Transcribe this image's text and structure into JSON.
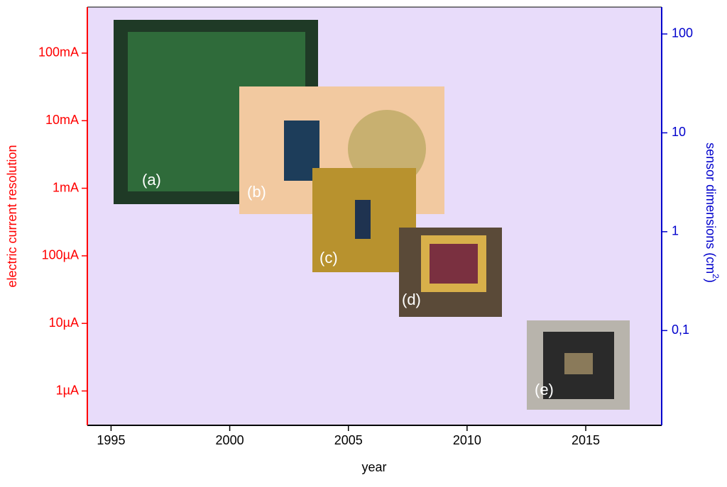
{
  "chart_data": {
    "type": "scatter",
    "x_label": "year",
    "y_label": "electric current resolution",
    "y2_label": {
      "text": "sensor dimensions (cm",
      "sup": "2",
      "end": ")"
    },
    "xlim": [
      1994,
      2018.2
    ],
    "xticks": [
      1995,
      2000,
      2005,
      2010,
      2015
    ],
    "ylim": [
      3.1e-07,
      0.48
    ],
    "ylog": true,
    "yticks": [
      {
        "value": 1e-06,
        "label": "1µA"
      },
      {
        "value": 1e-05,
        "label": "10µA"
      },
      {
        "value": 0.0001,
        "label": "100µA"
      },
      {
        "value": 0.001,
        "label": "1mA"
      },
      {
        "value": 0.01,
        "label": "10mA"
      },
      {
        "value": 0.1,
        "label": "100mA"
      }
    ],
    "y_color": "#ff0000",
    "y2lim": [
      0.011,
      187
    ],
    "y2log": true,
    "y2ticks": [
      {
        "value": 0.1,
        "label": "0,1"
      },
      1,
      10,
      100
    ],
    "y2_color": "#0000cc",
    "annotations": [
      "(a)",
      "(b)",
      "(c)",
      "(d)",
      "(e)"
    ]
  }
}
